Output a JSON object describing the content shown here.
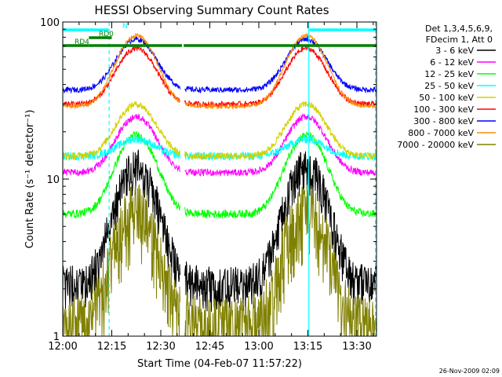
{
  "chart_data": {
    "type": "line",
    "title": "HESSI Observing Summary Count Rates",
    "xlabel": "Start Time (04-Feb-07 11:57:22)",
    "ylabel": "Count Rate (s⁻¹ detector⁻¹)",
    "x_unit": "minutes after 12:00",
    "xlim": [
      0,
      96
    ],
    "ylim": [
      1,
      100
    ],
    "y_scale": "log",
    "x_ticks": [
      {
        "value": 0,
        "label": "12:00"
      },
      {
        "value": 15,
        "label": "12:15"
      },
      {
        "value": 30,
        "label": "12:30"
      },
      {
        "value": 45,
        "label": "12:45"
      },
      {
        "value": 60,
        "label": "13:00"
      },
      {
        "value": 75,
        "label": "13:15"
      },
      {
        "value": 90,
        "label": "13:30"
      }
    ],
    "y_ticks": [
      {
        "value": 1,
        "label": "1"
      },
      {
        "value": 10,
        "label": "10"
      },
      {
        "value": 100,
        "label": "100"
      }
    ],
    "legend": {
      "position": "right",
      "header": [
        "Det 1,3,4,5,6,9,",
        "FDecim 1, Att 0"
      ]
    },
    "series": [
      {
        "name": "3 - 6 keV",
        "color": "#000000",
        "base": 2.8,
        "peak": 15.5,
        "noise": 0.35,
        "minusOnly": true
      },
      {
        "name": "6 - 12 keV",
        "color": "#ff00ff",
        "base": 11,
        "peak": 25,
        "noise": 0.05
      },
      {
        "name": "12 - 25 keV",
        "color": "#00ff00",
        "base": 6,
        "peak": 19,
        "noise": 0.06
      },
      {
        "name": "25 - 50 keV",
        "color": "#00ffff",
        "base": 14,
        "peak": 18,
        "noise": 0.06
      },
      {
        "name": "50 - 100 keV",
        "color": "#d2d200",
        "base": 14,
        "peak": 30,
        "noise": 0.05
      },
      {
        "name": "100 - 300 keV",
        "color": "#ff0000",
        "base": 30,
        "peak": 68,
        "noise": 0.04
      },
      {
        "name": "300 - 800 keV",
        "color": "#0000ff",
        "base": 37,
        "peak": 78,
        "noise": 0.04
      },
      {
        "name": "800 - 7000 keV",
        "color": "#ff8c00",
        "base": 29,
        "peak": 82,
        "noise": 0.03
      },
      {
        "name": "7000 - 20000 keV",
        "color": "#808000",
        "base": 1.8,
        "peak": 9.5,
        "noise": 0.5,
        "minusOnly": true
      }
    ],
    "markers": {
      "N": {
        "label": "N",
        "color": "#00ffff",
        "segments": [
          [
            0,
            14
          ],
          [
            75.5,
            96
          ]
        ]
      },
      "RD0": {
        "label": "RD0",
        "color": "#008000",
        "segments": [
          [
            8,
            15
          ]
        ]
      },
      "RD4": {
        "label": "RD4",
        "color": "#008000",
        "segments": [
          [
            0,
            8
          ],
          [
            8,
            36.5
          ],
          [
            37,
            96
          ]
        ]
      }
    },
    "vlines": [
      {
        "x": 0,
        "style": "solid",
        "color": "#00ffff"
      },
      {
        "x": 14.2,
        "style": "dashed",
        "color": "#00ffff"
      },
      {
        "x": 75.3,
        "style": "solid",
        "color": "#00ffff"
      },
      {
        "x": 95.7,
        "style": "dashed",
        "color": "#00ffff"
      }
    ],
    "gaps": [
      [
        36,
        37.2
      ]
    ],
    "peaks": [
      22.5,
      74.5
    ]
  },
  "footer": {
    "timestamp": "26-Nov-2009 02:09"
  }
}
